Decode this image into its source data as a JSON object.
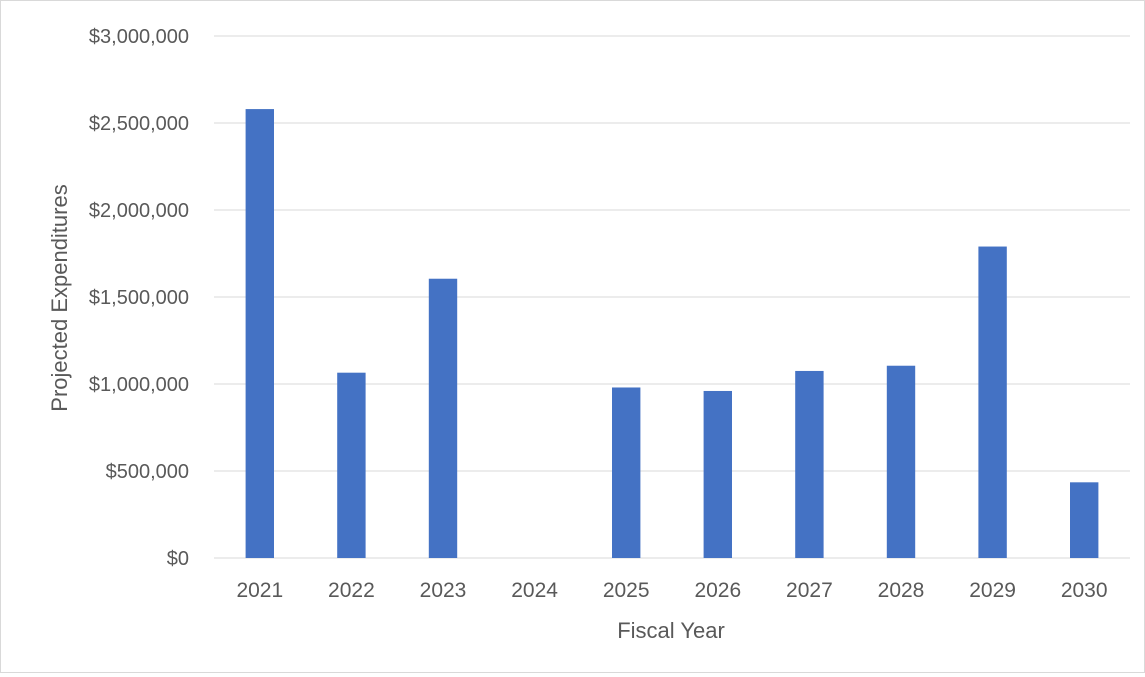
{
  "chart_data": {
    "type": "bar",
    "title": "",
    "xlabel": "Fiscal Year",
    "ylabel": "Projected Expenditures",
    "categories": [
      "2021",
      "2022",
      "2023",
      "2024",
      "2025",
      "2026",
      "2027",
      "2028",
      "2029",
      "2030"
    ],
    "series": [
      {
        "values": [
          2580000,
          1065000,
          1605000,
          0,
          980000,
          960000,
          1075000,
          1105000,
          1790000,
          435000
        ]
      }
    ],
    "ylim": [
      0,
      3000000
    ],
    "yticks": [
      0,
      500000,
      1000000,
      1500000,
      2000000,
      2500000,
      3000000
    ],
    "ytick_labels": [
      "$0",
      "$500,000",
      "$1,000,000",
      "$1,500,000",
      "$2,000,000",
      "$2,500,000",
      "$3,000,000"
    ],
    "grid": true,
    "legend": "none",
    "bar_color": "#4472c4",
    "grid_color": "#d9d9d9",
    "text_color": "#595959"
  }
}
